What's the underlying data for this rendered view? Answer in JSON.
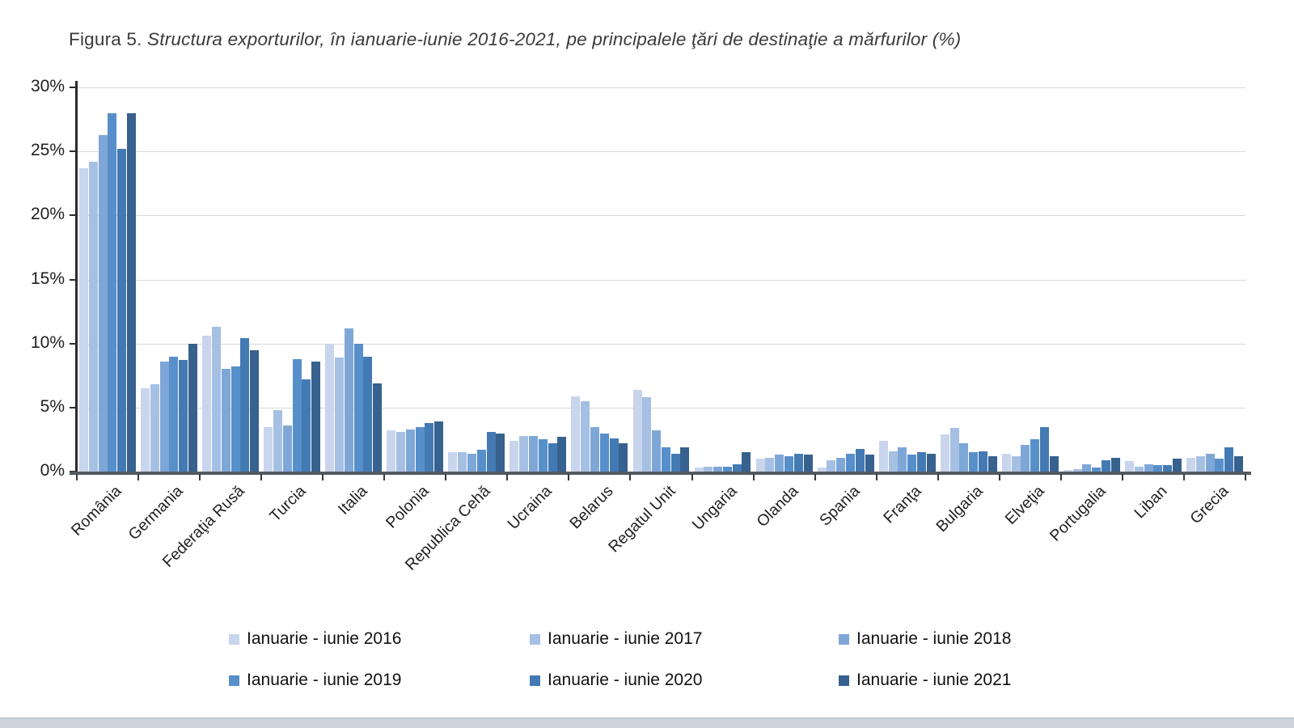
{
  "figure": {
    "title_prefix": "Figura 5. ",
    "title_italic": "Structura exporturilor, în ianuarie-iunie 2016-2021, pe principalele ţări de destinaţie a mărfurilor (%)"
  },
  "chart_data": {
    "type": "bar",
    "title": "Figura 5. Structura exporturilor, în ianuarie-iunie 2016-2021, pe principalele ţări de destinaţie a mărfurilor (%)",
    "xlabel": "",
    "ylabel": "",
    "ylim": [
      0,
      30
    ],
    "yticks": [
      0,
      5,
      10,
      15,
      20,
      25,
      30
    ],
    "ytick_suffix": "%",
    "grid": true,
    "legend_position": "bottom",
    "categories": [
      "România",
      "Germania",
      "Federaţia Rusă",
      "Turcia",
      "Italia",
      "Polonia",
      "Republica Cehă",
      "Ucraina",
      "Belarus",
      "Regatul Unit",
      "Ungaria",
      "Olanda",
      "Spania",
      "Franţa",
      "Bulgaria",
      "Elveţia",
      "Portugalia",
      "Liban",
      "Grecia"
    ],
    "series": [
      {
        "name": "Ianuarie - iunie 2016",
        "color": "#c8d5ec",
        "values": [
          23.7,
          6.5,
          10.6,
          3.5,
          10.0,
          3.2,
          1.5,
          2.4,
          5.9,
          6.4,
          0.3,
          1.0,
          0.3,
          2.4,
          2.9,
          1.4,
          0.1,
          0.8,
          1.1
        ]
      },
      {
        "name": "Ianuarie - iunie 2017",
        "color": "#a6c0e4",
        "values": [
          24.2,
          6.8,
          11.3,
          4.8,
          8.9,
          3.1,
          1.5,
          2.8,
          5.5,
          5.8,
          0.4,
          1.1,
          0.9,
          1.6,
          3.4,
          1.2,
          0.2,
          0.4,
          1.2
        ]
      },
      {
        "name": "Ianuarie - iunie 2018",
        "color": "#7ea7d8",
        "values": [
          26.3,
          8.6,
          8.0,
          3.6,
          11.2,
          3.3,
          1.4,
          2.8,
          3.5,
          3.2,
          0.4,
          1.3,
          1.1,
          1.9,
          2.2,
          2.1,
          0.6,
          0.6,
          1.4
        ]
      },
      {
        "name": "Ianuarie - iunie 2019",
        "color": "#578fcb",
        "values": [
          28.0,
          9.0,
          8.2,
          8.8,
          10.0,
          3.5,
          1.7,
          2.5,
          3.0,
          1.9,
          0.4,
          1.2,
          1.4,
          1.3,
          1.5,
          2.5,
          0.3,
          0.5,
          1.0
        ]
      },
      {
        "name": "Ianuarie - iunie 2020",
        "color": "#447ab4",
        "values": [
          25.2,
          8.7,
          10.4,
          7.2,
          9.0,
          3.8,
          3.1,
          2.2,
          2.6,
          1.4,
          0.6,
          1.4,
          1.8,
          1.5,
          1.6,
          3.5,
          0.9,
          0.5,
          1.9
        ]
      },
      {
        "name": "Ianuarie - iunie 2021",
        "color": "#37618e",
        "values": [
          28.0,
          10.0,
          9.5,
          8.6,
          6.9,
          3.9,
          3.0,
          2.7,
          2.2,
          1.9,
          1.5,
          1.3,
          1.3,
          1.4,
          1.2,
          1.2,
          1.1,
          1.0,
          1.2
        ]
      }
    ]
  }
}
